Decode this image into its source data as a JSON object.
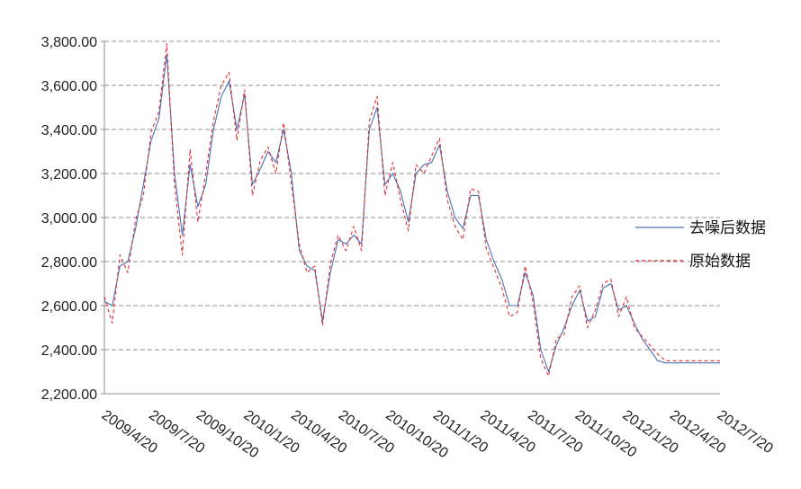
{
  "chart_data": {
    "type": "line",
    "title": "",
    "xlabel": "",
    "ylabel": "",
    "ylim": [
      2200,
      3800
    ],
    "y_ticks": [
      "2,200.00",
      "2,400.00",
      "2,600.00",
      "2,800.00",
      "3,000.00",
      "3,200.00",
      "3,400.00",
      "3,600.00",
      "3,800.00"
    ],
    "x_ticks": [
      "2009/4/20",
      "2009/7/20",
      "2009/10/20",
      "2010/1/20",
      "2010/4/20",
      "2010/7/20",
      "2010/10/20",
      "2011/1/20",
      "2011/4/20",
      "2011/7/20",
      "2011/10/20",
      "2012/1/20",
      "2012/4/20",
      "2012/7/20"
    ],
    "grid": "horizontal dashed",
    "legend_position": "right",
    "x": [
      "2009/4/20",
      "2009/5/5",
      "2009/5/20",
      "2009/6/5",
      "2009/6/20",
      "2009/7/5",
      "2009/7/20",
      "2009/8/5",
      "2009/8/20",
      "2009/9/5",
      "2009/9/20",
      "2009/10/5",
      "2009/10/20",
      "2009/11/5",
      "2009/11/20",
      "2009/12/5",
      "2009/12/20",
      "2010/1/5",
      "2010/1/20",
      "2010/2/5",
      "2010/2/20",
      "2010/3/5",
      "2010/3/20",
      "2010/4/5",
      "2010/4/20",
      "2010/5/5",
      "2010/5/20",
      "2010/6/5",
      "2010/6/20",
      "2010/7/5",
      "2010/7/20",
      "2010/8/5",
      "2010/8/20",
      "2010/9/5",
      "2010/9/20",
      "2010/10/5",
      "2010/10/20",
      "2010/11/5",
      "2010/11/20",
      "2010/12/5",
      "2010/12/20",
      "2011/1/5",
      "2011/1/20",
      "2011/2/5",
      "2011/2/20",
      "2011/3/5",
      "2011/3/20",
      "2011/4/5",
      "2011/4/20",
      "2011/5/5",
      "2011/5/20",
      "2011/6/5",
      "2011/6/20",
      "2011/7/5",
      "2011/7/20",
      "2011/8/5",
      "2011/8/20",
      "2011/9/5",
      "2011/9/20",
      "2011/10/5",
      "2011/10/20",
      "2011/11/5",
      "2011/11/20",
      "2011/12/5",
      "2011/12/20",
      "2012/1/5",
      "2012/1/20",
      "2012/2/5",
      "2012/2/20",
      "2012/3/5",
      "2012/3/20",
      "2012/4/5",
      "2012/4/20",
      "2012/5/5",
      "2012/5/20",
      "2012/6/5",
      "2012/6/20",
      "2012/7/5",
      "2012/7/20",
      "2012/7/31"
    ],
    "series": [
      {
        "name": "去噪后数据",
        "color": "#4a6fb5",
        "style": "solid",
        "values": [
          2620,
          2600,
          2780,
          2800,
          2950,
          3150,
          3350,
          3450,
          3740,
          3200,
          2920,
          3240,
          3050,
          3150,
          3400,
          3550,
          3620,
          3400,
          3560,
          3150,
          3220,
          3300,
          3250,
          3400,
          3200,
          2850,
          2780,
          2760,
          2530,
          2750,
          2900,
          2880,
          2920,
          2880,
          3400,
          3500,
          3150,
          3200,
          3120,
          2980,
          3200,
          3240,
          3250,
          3330,
          3120,
          3000,
          2950,
          3100,
          3100,
          2900,
          2800,
          2720,
          2600,
          2600,
          2750,
          2650,
          2400,
          2300,
          2420,
          2500,
          2600,
          2670,
          2530,
          2550,
          2680,
          2700,
          2580,
          2600,
          2520,
          2450,
          2400,
          2350,
          2340,
          2340,
          2340,
          2340,
          2340,
          2340,
          2340,
          2340
        ],
        "smoothing": "none"
      },
      {
        "name": "原始数据",
        "color": "#e03030",
        "style": "dashed",
        "values": [
          2640,
          2520,
          2830,
          2750,
          2990,
          3100,
          3390,
          3480,
          3790,
          3150,
          2830,
          3310,
          2980,
          3200,
          3440,
          3600,
          3660,
          3350,
          3580,
          3100,
          3260,
          3320,
          3200,
          3430,
          3150,
          2880,
          2750,
          2780,
          2510,
          2790,
          2920,
          2850,
          2960,
          2850,
          3440,
          3550,
          3100,
          3250,
          3080,
          2940,
          3240,
          3200,
          3280,
          3360,
          3080,
          2960,
          2900,
          3130,
          3120,
          2860,
          2770,
          2680,
          2550,
          2570,
          2780,
          2620,
          2360,
          2280,
          2450,
          2470,
          2640,
          2690,
          2500,
          2580,
          2700,
          2720,
          2550,
          2640,
          2500,
          2460,
          2420,
          2380,
          2350,
          2350,
          2350,
          2350,
          2350,
          2350,
          2350,
          2350
        ]
      }
    ]
  },
  "legend": [
    {
      "label": "去噪后数据",
      "color": "#4a6fb5",
      "style": "solid"
    },
    {
      "label": "原始数据",
      "color": "#e03030",
      "style": "dashed"
    }
  ]
}
